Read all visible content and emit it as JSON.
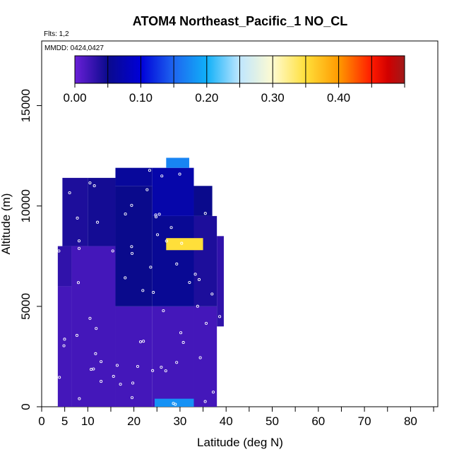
{
  "chart_data": {
    "type": "heatmap",
    "title": "ATOM4 Northeast_Pacific_1 NO_CL",
    "annotations": {
      "flights": "Flts: 1,2",
      "dates": "MMDD: 0424,0427"
    },
    "xlabel": "Latitude (deg N)",
    "ylabel": "Altitude (m)",
    "xlim": [
      0,
      85
    ],
    "ylim": [
      0,
      18000
    ],
    "x_ticks": [
      0,
      5,
      10,
      20,
      30,
      40,
      50,
      60,
      70,
      80
    ],
    "x_minor_ticks": [
      15,
      25,
      35,
      45,
      55,
      65,
      75,
      85
    ],
    "y_ticks": [
      0,
      5000,
      10000,
      15000
    ],
    "colorbar": {
      "range": [
        0,
        0.5
      ],
      "tick_values": [
        0.0,
        0.1,
        0.2,
        0.3,
        0.4
      ],
      "tick_labels": [
        "0.00",
        "0.10",
        "0.20",
        "0.30",
        "0.40"
      ],
      "colors": [
        "#6a1fd8",
        "#0a0a8c",
        "#0000d8",
        "#1e66f0",
        "#10b0f8",
        "#bfe6ff",
        "#fffbd0",
        "#ffdf3a",
        "#ff9a00",
        "#ff1a00",
        "#d10000",
        "#a01a1a"
      ],
      "color_stops": [
        0.0,
        0.05,
        0.1,
        0.15,
        0.2,
        0.25,
        0.3,
        0.35,
        0.4,
        0.45,
        0.475,
        0.5
      ]
    },
    "profile_columns": [
      {
        "lat0": 3.5,
        "lat1": 6.5,
        "alt0": 0,
        "alt1": 6000,
        "value": 0.02
      },
      {
        "lat0": 3.5,
        "lat1": 6.5,
        "alt0": 6000,
        "alt1": 8000,
        "value": 0.03
      },
      {
        "lat0": 4.5,
        "lat1": 10,
        "alt0": 8000,
        "alt1": 11400,
        "value": 0.04
      },
      {
        "lat0": 6.5,
        "lat1": 16,
        "alt0": 0,
        "alt1": 8000,
        "value": 0.02
      },
      {
        "lat0": 10,
        "lat1": 16,
        "alt0": 8000,
        "alt1": 11400,
        "value": 0.045
      },
      {
        "lat0": 16,
        "lat1": 24,
        "alt0": 0,
        "alt1": 5000,
        "value": 0.02
      },
      {
        "lat0": 16,
        "lat1": 24,
        "alt0": 5000,
        "alt1": 11000,
        "value": 0.05
      },
      {
        "lat0": 16,
        "lat1": 24,
        "alt0": 11000,
        "alt1": 11900,
        "value": 0.06
      },
      {
        "lat0": 24,
        "lat1": 33,
        "alt0": 0,
        "alt1": 5000,
        "value": 0.02
      },
      {
        "lat0": 24,
        "lat1": 33,
        "alt0": 5000,
        "alt1": 9500,
        "value": 0.055
      },
      {
        "lat0": 24,
        "lat1": 33,
        "alt0": 9500,
        "alt1": 11900,
        "value": 0.07
      },
      {
        "lat0": 27,
        "lat1": 32,
        "alt0": 11900,
        "alt1": 12400,
        "value": 0.17
      },
      {
        "lat0": 33,
        "lat1": 38,
        "alt0": 0,
        "alt1": 5000,
        "value": 0.02
      },
      {
        "lat0": 33,
        "lat1": 38,
        "alt0": 5000,
        "alt1": 9500,
        "value": 0.04
      },
      {
        "lat0": 33,
        "lat1": 37,
        "alt0": 9500,
        "alt1": 11000,
        "value": 0.05
      },
      {
        "lat0": 38,
        "lat1": 39.5,
        "alt0": 4000,
        "alt1": 8500,
        "value": 0.03
      },
      {
        "lat0": 24.5,
        "lat1": 33,
        "alt0": 0,
        "alt1": 400,
        "value": 0.18
      },
      {
        "lat0": 27,
        "lat1": 35,
        "alt0": 7800,
        "alt1": 8400,
        "value": 0.35
      }
    ]
  }
}
